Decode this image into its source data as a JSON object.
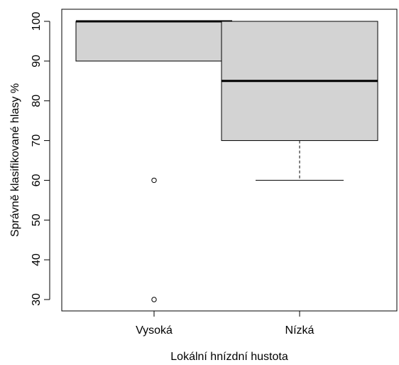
{
  "chart_data": {
    "type": "boxplot",
    "title": "",
    "xlabel": "Lokální hnízdní hustota",
    "ylabel": "Správně klasifikované hlasy %",
    "ylim": [
      27,
      102
    ],
    "y_ticks": [
      30,
      40,
      50,
      60,
      70,
      80,
      90,
      100
    ],
    "y_tick_labels": [
      "30",
      "40",
      "50",
      "60",
      "70",
      "80",
      "90",
      "100"
    ],
    "grid": false,
    "legend": "none",
    "categories": [
      "Vysoká",
      "Nízká"
    ],
    "boxes": [
      {
        "category": "Vysoká",
        "whisker_low": 90,
        "q1": 90,
        "median": 100,
        "q3": 100,
        "whisker_high": 100,
        "outliers": [
          60,
          30
        ]
      },
      {
        "category": "Nízká",
        "whisker_low": 60,
        "q1": 70,
        "median": 85,
        "q3": 100,
        "whisker_high": 100,
        "outliers": []
      }
    ],
    "colors": {
      "box_fill": "#d3d3d3",
      "stroke": "#000000"
    }
  }
}
